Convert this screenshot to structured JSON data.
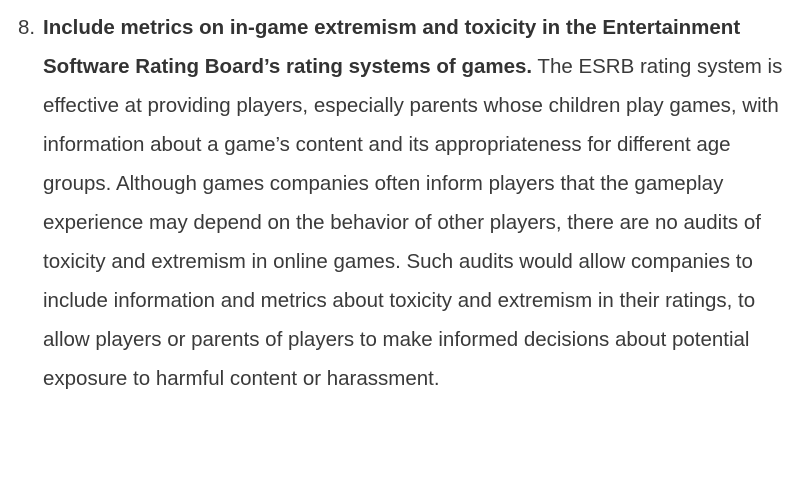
{
  "list": {
    "items": [
      {
        "number": "8.",
        "heading": "Include metrics on in-game extremism and toxicity in the Entertainment Software Rating Board’s rating systems of games.",
        "body": "The ESRB rating system is effective at providing players, especially parents whose children play games, with information about a game’s content and its appropriateness for different age groups. Although games companies often inform players that the gameplay experience may depend on the behavior of other players, there are no audits of toxicity and extremism in online games. Such audits would allow companies to include information and metrics about toxicity and extremism in their ratings, to allow players or parents of players to make informed decisions about potential exposure to harmful content or harassment."
      }
    ]
  }
}
